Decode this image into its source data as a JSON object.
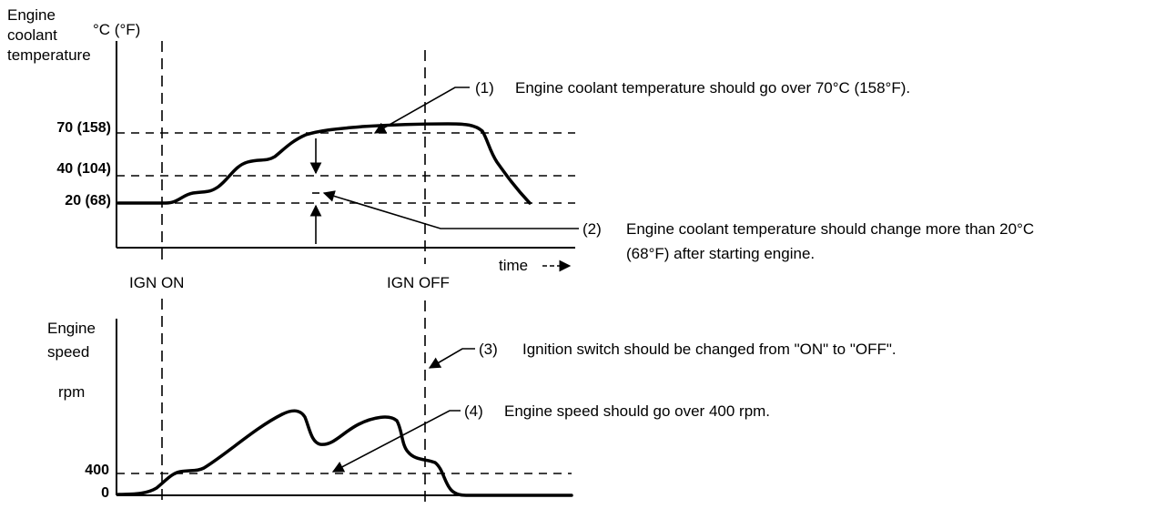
{
  "top_chart": {
    "ylabel_lines": [
      "Engine",
      "coolant",
      "temperature"
    ],
    "unit": "°C (°F)",
    "ticks": [
      "70 (158)",
      "40 (104)",
      "20 (68)"
    ],
    "x_axis_label": "time"
  },
  "ign_on": "IGN ON",
  "ign_off": "IGN OFF",
  "bottom_chart": {
    "ylabel_lines": [
      "Engine",
      "speed"
    ],
    "unit": "rpm",
    "ticks": [
      "400",
      "0"
    ]
  },
  "notes": [
    {
      "num": "(1)",
      "text": "Engine coolant temperature should go over 70°C (158°F)."
    },
    {
      "num": "(2)",
      "text": "Engine coolant temperature should change more than 20°C",
      "text2": "(68°F) after starting engine."
    },
    {
      "num": "(3)",
      "text": "Ignition switch should be changed from \"ON\" to \"OFF\"."
    },
    {
      "num": "(4)",
      "text": "Engine speed should go over 400 rpm."
    }
  ],
  "colors": {
    "ink": "#000000",
    "background": "#ffffff"
  }
}
